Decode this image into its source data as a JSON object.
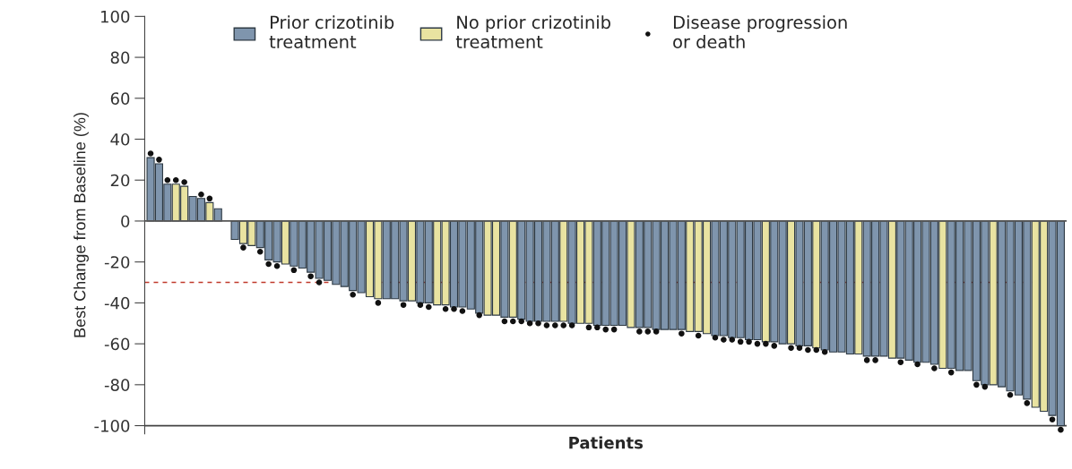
{
  "chart_data": {
    "type": "bar",
    "xlabel": "Patients",
    "ylabel": "Best Change from Baseline (%)",
    "categories": [
      null,
      null,
      null,
      null,
      null,
      null,
      null,
      null,
      null,
      null,
      null,
      null,
      null,
      null,
      null,
      null,
      null,
      null,
      null,
      null,
      null,
      null,
      null,
      null,
      null,
      null,
      null,
      null,
      null,
      null,
      null,
      null,
      null,
      null,
      null,
      null,
      null,
      null,
      null,
      null,
      null,
      null,
      null,
      null,
      null,
      null,
      null,
      null,
      null,
      null,
      null,
      null,
      null,
      null,
      null,
      null,
      null,
      null,
      null,
      null,
      null,
      null,
      null,
      null,
      null,
      null,
      null,
      null,
      null,
      null,
      null,
      null,
      null,
      null,
      null,
      null,
      null,
      null,
      null,
      null,
      null,
      null,
      null,
      null,
      null,
      null,
      null,
      null,
      null,
      null,
      null,
      null,
      null,
      null,
      null,
      null,
      null,
      null,
      null,
      null,
      null,
      null,
      null,
      null,
      null,
      null,
      null,
      null,
      null
    ],
    "series": [
      {
        "name": "Prior crizotinib\ntreatment",
        "color": "#7f95ad",
        "values": [
          31,
          28,
          18,
          null,
          null,
          12,
          11,
          null,
          6,
          null,
          -9,
          null,
          null,
          -13,
          -19,
          -20,
          null,
          -22,
          -23,
          -25,
          -28,
          -29,
          -31,
          -32,
          -34,
          -35,
          null,
          null,
          -38,
          -38,
          -39,
          null,
          -40,
          -40,
          null,
          null,
          -42,
          -42,
          -43,
          -45,
          null,
          null,
          -47,
          null,
          -48,
          -49,
          -49,
          -49,
          -49,
          null,
          -50,
          null,
          null,
          -51,
          -51,
          -51,
          -51,
          null,
          -52,
          -52,
          -53,
          -53,
          -53,
          -53,
          null,
          null,
          null,
          -56,
          -56,
          -57,
          -57,
          -58,
          -58,
          null,
          -59,
          -60,
          null,
          -61,
          -61,
          null,
          -63,
          -64,
          -64,
          -65,
          null,
          -66,
          -66,
          -66,
          null,
          -67,
          -68,
          -69,
          -69,
          -70,
          null,
          -72,
          -73,
          -73,
          -78,
          -80,
          null,
          -81,
          -83,
          -85,
          -87,
          null,
          null,
          -95,
          -100
        ]
      },
      {
        "name": "No prior crizotinib\ntreatment",
        "color": "#e9e3a1",
        "values": [
          null,
          null,
          null,
          18,
          17,
          null,
          null,
          9,
          null,
          null,
          null,
          -11,
          -12,
          null,
          null,
          null,
          -21,
          null,
          null,
          null,
          null,
          null,
          null,
          null,
          null,
          null,
          -37,
          -38,
          null,
          null,
          null,
          -39,
          null,
          null,
          -41,
          -41,
          null,
          null,
          null,
          null,
          -46,
          -46,
          null,
          -47,
          null,
          null,
          null,
          null,
          null,
          -49,
          null,
          -50,
          -50,
          null,
          null,
          null,
          null,
          -52,
          null,
          null,
          null,
          null,
          null,
          null,
          -54,
          -54,
          -55,
          null,
          null,
          null,
          null,
          null,
          null,
          -59,
          null,
          null,
          -60,
          null,
          null,
          -62,
          null,
          null,
          null,
          null,
          -65,
          null,
          null,
          null,
          -67,
          null,
          null,
          null,
          null,
          null,
          -72,
          null,
          null,
          null,
          null,
          null,
          -80,
          null,
          null,
          null,
          null,
          -91,
          -93,
          null,
          null
        ]
      },
      {
        "name": "Disease progression\nor death",
        "type": "scatter",
        "color": "#111111",
        "values": [
          33,
          30,
          20,
          20,
          19,
          null,
          13,
          11,
          null,
          null,
          null,
          -13,
          null,
          -15,
          -21,
          -22,
          null,
          -24,
          null,
          -27,
          -30,
          null,
          null,
          null,
          -36,
          null,
          null,
          -40,
          null,
          null,
          -41,
          null,
          -41,
          -42,
          null,
          -43,
          -43,
          -44,
          null,
          -46,
          null,
          null,
          -49,
          -49,
          -49,
          -50,
          -50,
          -51,
          -51,
          -51,
          -51,
          null,
          -52,
          -52,
          -53,
          -53,
          null,
          null,
          -54,
          -54,
          -54,
          null,
          null,
          -55,
          null,
          -56,
          null,
          -57,
          -58,
          -58,
          -59,
          -59,
          -60,
          -60,
          -61,
          null,
          -62,
          -62,
          -63,
          -63,
          -64,
          null,
          null,
          null,
          null,
          -68,
          -68,
          null,
          null,
          -69,
          null,
          -70,
          null,
          -72,
          null,
          -74,
          null,
          null,
          -80,
          -81,
          null,
          null,
          -85,
          null,
          -89,
          null,
          null,
          -97,
          -102
        ]
      }
    ],
    "ylim": [
      -104,
      100
    ],
    "yticks": [
      -100,
      -80,
      -60,
      -40,
      -20,
      0,
      20,
      40,
      60,
      80,
      100
    ],
    "ref_lines": [
      {
        "axis": "y",
        "value": -30,
        "color": "#c0392b",
        "line_style": "dashed"
      },
      {
        "axis": "y",
        "value": 0,
        "color": "#555555",
        "line_style": "solid"
      },
      {
        "axis": "y",
        "value": -100,
        "color": "#444444",
        "line_style": "solid"
      }
    ],
    "marker": "circle",
    "legend": "top",
    "grid": false
  }
}
